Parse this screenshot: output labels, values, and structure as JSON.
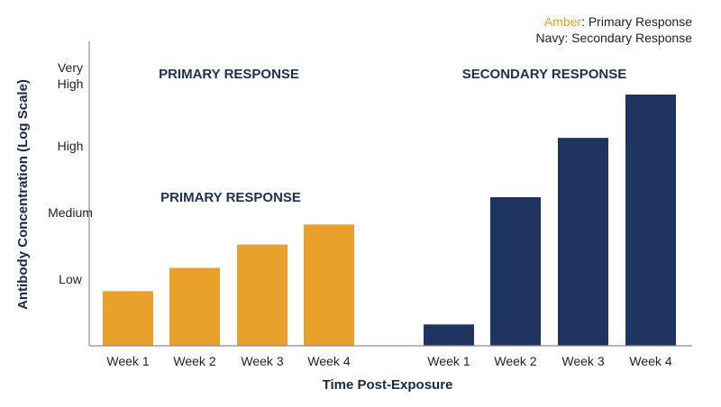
{
  "colors": {
    "amber": "#E8A12A",
    "navy": "#1F3461",
    "axis": "#8c8c8c",
    "text": "#222222",
    "title_text": "#1C2F55"
  },
  "legend": {
    "entries": [
      {
        "label": "Amber",
        "description": ": Primary Response",
        "color": "#E8A12A"
      },
      {
        "label": "Navy",
        "description": ": Secondary Response",
        "color": "#1F3461"
      }
    ]
  },
  "annotations": {
    "primary_top": "PRIMARY RESPONSE",
    "primary_mid": "PRIMARY RESPONSE",
    "secondary_top": "SECONDARY RESPONSE"
  },
  "chart_data": {
    "type": "bar",
    "title": "",
    "xlabel": "Time Post-Exposure",
    "ylabel": "Antibody Concentration (Log Scale)",
    "ylim": [
      0,
      4
    ],
    "y_ticks": [
      {
        "label": "Low",
        "value": 1
      },
      {
        "label": "Medium",
        "value": 2
      },
      {
        "label": "High",
        "value": 3
      },
      {
        "label": "Very High",
        "value": 4
      }
    ],
    "categories": [
      "Week 1",
      "Week 2",
      "Week 3",
      "Week 4"
    ],
    "series": [
      {
        "name": "Primary Response",
        "color": "#E8A12A",
        "values": [
          0.82,
          1.17,
          1.52,
          1.82
        ]
      },
      {
        "name": "Secondary Response",
        "color": "#1F3461",
        "values": [
          0.32,
          2.23,
          3.12,
          3.77
        ]
      }
    ],
    "grid": false,
    "legend_position": "top-right"
  }
}
